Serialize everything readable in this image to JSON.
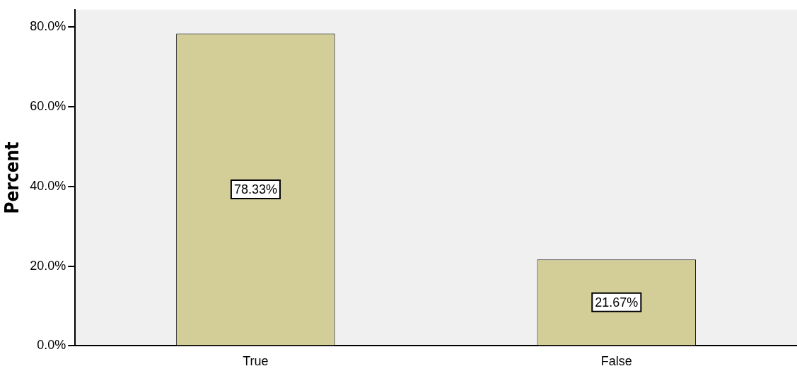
{
  "chart_data": {
    "type": "bar",
    "ylabel": "Percent",
    "categories": [
      "True",
      "False"
    ],
    "values": [
      78.33,
      21.67
    ],
    "color": "#d3ce97",
    "value_labels": [
      "78.33%",
      "21.67%"
    ],
    "ylim": [
      0,
      84.3
    ],
    "yticks": [
      {
        "value": 0,
        "label": "0.0%"
      },
      {
        "value": 20,
        "label": "20.0%"
      },
      {
        "value": 40,
        "label": "40.0%"
      },
      {
        "value": 60,
        "label": "60.0%"
      },
      {
        "value": 80,
        "label": "80.0%"
      }
    ],
    "grid": false,
    "legend": false
  }
}
